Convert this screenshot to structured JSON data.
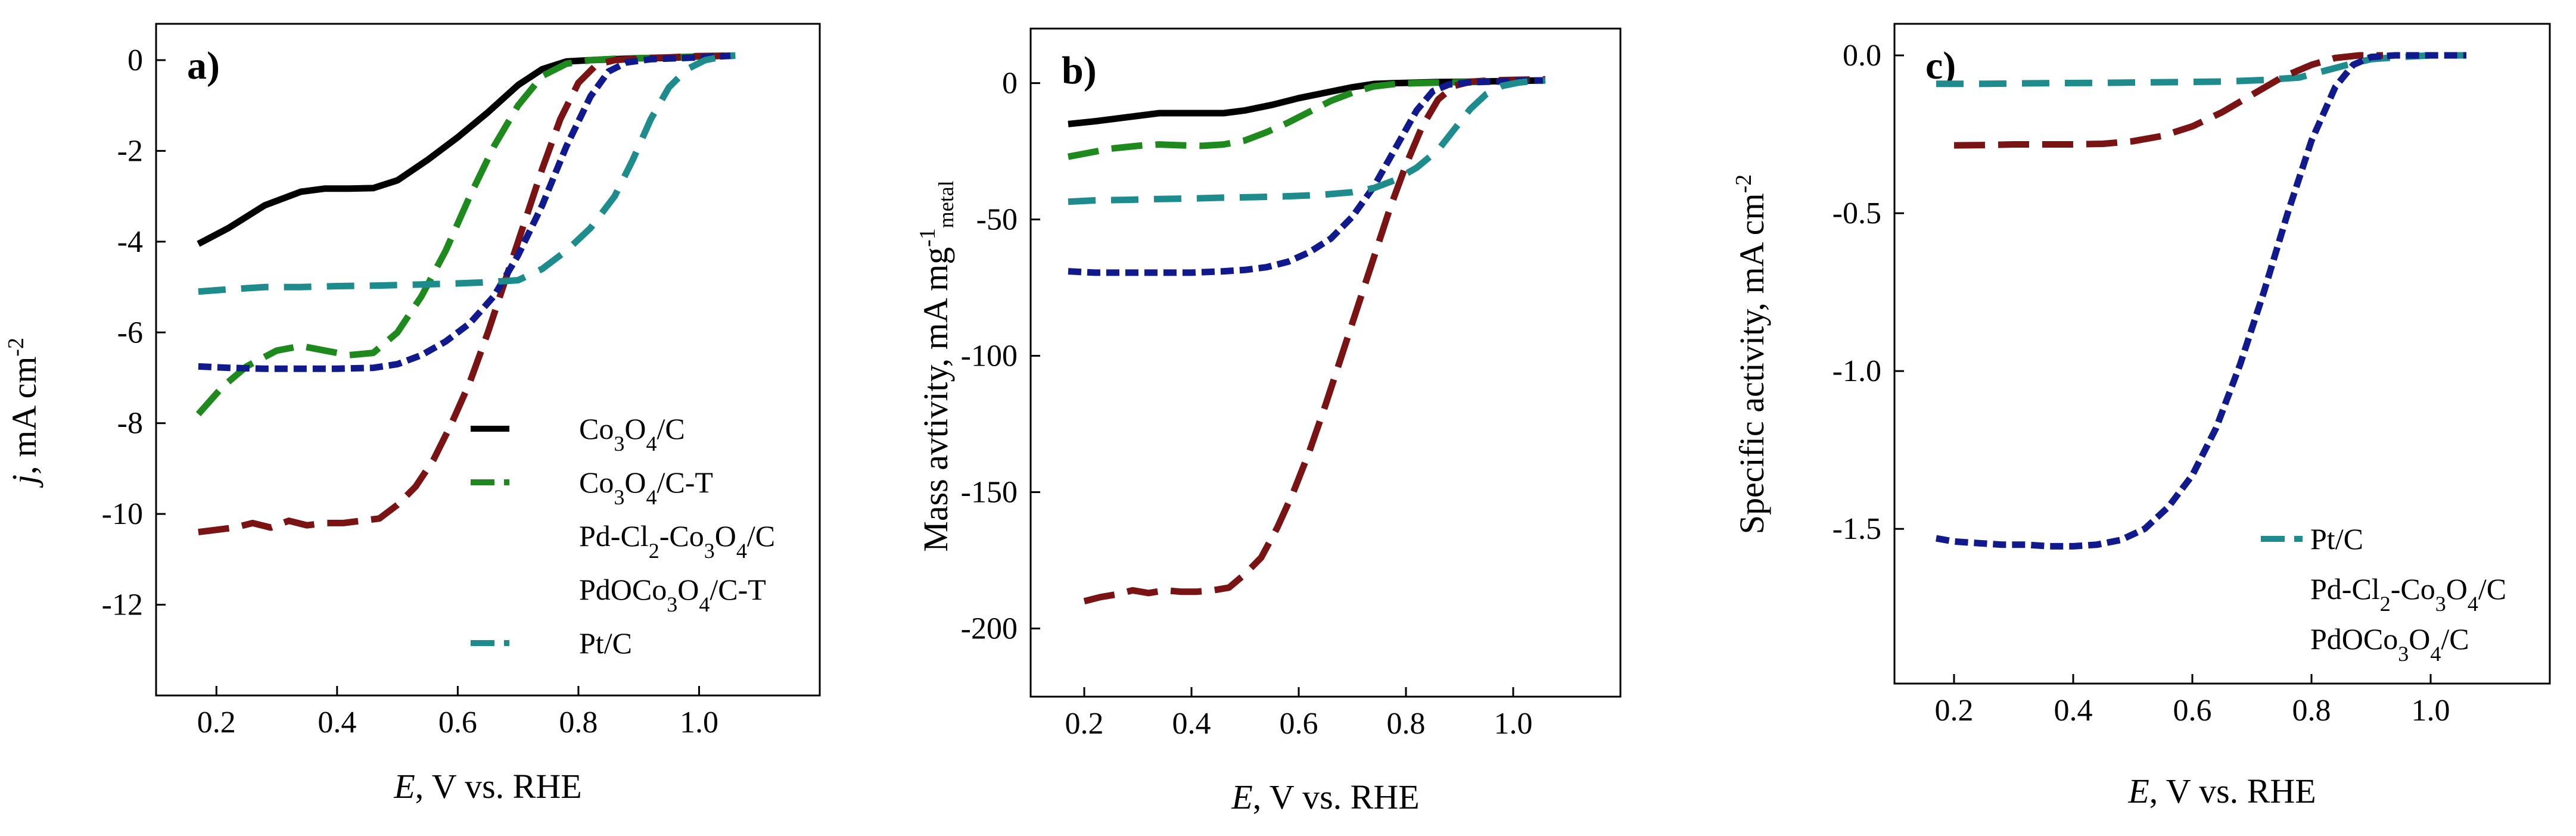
{
  "figure": {
    "colors": {
      "co3o4_c": "#000000",
      "co3o4_c_t": "#1e8a1e",
      "pd_cl2": "#7a1414",
      "pdoco3o4": "#101a8c",
      "pt_c": "#1e8c8c"
    }
  },
  "chart_data": [
    {
      "type": "line",
      "panel": "a)",
      "xlabel": {
        "italic": "E",
        "rest": ", V vs. RHE"
      },
      "ylabel": {
        "italic": "j",
        "rest": ", mA cm",
        "sup": "-2"
      },
      "xlim": [
        0.1,
        1.2
      ],
      "ylim": [
        -14,
        0.8
      ],
      "xticks": [
        0.2,
        0.4,
        0.6,
        0.8,
        1.0
      ],
      "xtick_labels": [
        "0.2",
        "0.4",
        "0.6",
        "0.8",
        "1.0"
      ],
      "yticks": [
        0,
        -2,
        -4,
        -6,
        -8,
        -10,
        -12
      ],
      "ytick_labels": [
        "0",
        "-2",
        "-4",
        "-6",
        "-8",
        "-10",
        "-12"
      ],
      "legend": {
        "position": "bottom-right",
        "entries": [
          {
            "text": "Co3O4/C",
            "color": "#000000",
            "style": "solid",
            "line": true
          },
          {
            "text": "Co3O4/C-T",
            "color": "#1e8a1e",
            "style": "dash",
            "line": true
          },
          {
            "text": "Pd-Cl2-Co3O4/C",
            "color": "#7a1414",
            "style": "dash",
            "line": false
          },
          {
            "text": "PdOCo3O4/C-T",
            "color": "#101a8c",
            "style": "dash",
            "line": false
          },
          {
            "text": "Pt/C",
            "color": "#1e8c8c",
            "style": "dash",
            "line": true
          }
        ]
      },
      "series": [
        {
          "name": "Co3O4/C",
          "color": "#000000",
          "style": "solid",
          "x": [
            0.17,
            0.22,
            0.28,
            0.34,
            0.38,
            0.42,
            0.46,
            0.5,
            0.55,
            0.6,
            0.65,
            0.7,
            0.74,
            0.78,
            0.82,
            0.86,
            0.9,
            0.95,
            1.0,
            1.06
          ],
          "y": [
            -4.05,
            -3.7,
            -3.2,
            -2.9,
            -2.83,
            -2.83,
            -2.82,
            -2.65,
            -2.2,
            -1.7,
            -1.15,
            -0.55,
            -0.2,
            -0.03,
            0.0,
            0.02,
            0.04,
            0.05,
            0.08,
            0.1
          ]
        },
        {
          "name": "Co3O4/C-T",
          "color": "#1e8a1e",
          "style": "dash",
          "x": [
            0.17,
            0.21,
            0.25,
            0.3,
            0.34,
            0.38,
            0.42,
            0.46,
            0.5,
            0.54,
            0.58,
            0.62,
            0.66,
            0.7,
            0.74,
            0.78,
            0.82,
            0.86,
            0.92,
            1.0,
            1.06
          ],
          "y": [
            -7.8,
            -7.2,
            -6.75,
            -6.4,
            -6.3,
            -6.4,
            -6.5,
            -6.45,
            -6.0,
            -5.2,
            -4.2,
            -3.0,
            -1.9,
            -1.0,
            -0.35,
            -0.08,
            0.0,
            0.03,
            0.05,
            0.08,
            0.1
          ]
        },
        {
          "name": "Pd-Cl2-Co3O4/C",
          "color": "#7a1414",
          "style": "dash",
          "x": [
            0.17,
            0.2,
            0.23,
            0.26,
            0.29,
            0.32,
            0.35,
            0.38,
            0.41,
            0.44,
            0.47,
            0.5,
            0.53,
            0.56,
            0.59,
            0.62,
            0.65,
            0.68,
            0.71,
            0.74,
            0.77,
            0.8,
            0.83,
            0.86,
            0.9,
            0.95,
            1.0,
            1.06
          ],
          "y": [
            -10.4,
            -10.35,
            -10.3,
            -10.2,
            -10.3,
            -10.15,
            -10.25,
            -10.2,
            -10.2,
            -10.15,
            -10.1,
            -9.8,
            -9.4,
            -8.8,
            -8.0,
            -7.1,
            -6.0,
            -4.8,
            -3.6,
            -2.4,
            -1.3,
            -0.5,
            -0.1,
            0.0,
            0.04,
            0.06,
            0.09,
            0.1
          ]
        },
        {
          "name": "PdOCo3O4/C-T",
          "color": "#101a8c",
          "style": "dash",
          "x": [
            0.17,
            0.22,
            0.28,
            0.34,
            0.4,
            0.46,
            0.5,
            0.54,
            0.58,
            0.62,
            0.66,
            0.7,
            0.74,
            0.78,
            0.82,
            0.85,
            0.88,
            0.92,
            1.0,
            1.06
          ],
          "y": [
            -6.75,
            -6.78,
            -6.8,
            -6.8,
            -6.8,
            -6.78,
            -6.7,
            -6.5,
            -6.2,
            -5.8,
            -5.2,
            -4.3,
            -3.2,
            -1.9,
            -0.8,
            -0.25,
            -0.05,
            0.02,
            0.06,
            0.1
          ]
        },
        {
          "name": "Pt/C",
          "color": "#1e8c8c",
          "style": "dash",
          "x": [
            0.17,
            0.22,
            0.28,
            0.34,
            0.4,
            0.46,
            0.52,
            0.58,
            0.64,
            0.7,
            0.74,
            0.78,
            0.82,
            0.86,
            0.89,
            0.92,
            0.95,
            0.98,
            1.01,
            1.04,
            1.06
          ],
          "y": [
            -5.1,
            -5.05,
            -5.0,
            -5.0,
            -4.98,
            -4.97,
            -4.95,
            -4.93,
            -4.9,
            -4.85,
            -4.6,
            -4.2,
            -3.7,
            -3.0,
            -2.2,
            -1.3,
            -0.6,
            -0.2,
            0.0,
            0.08,
            0.1
          ]
        }
      ]
    },
    {
      "type": "line",
      "panel": "b)",
      "xlabel": {
        "italic": "E",
        "rest": ", V vs. RHE"
      },
      "ylabel": {
        "text": "Mass avtivity, mA  mg",
        "sup": "-1",
        "sub": "metal"
      },
      "xlim": [
        0.1,
        1.2
      ],
      "ylim": [
        -225,
        20
      ],
      "xticks": [
        0.2,
        0.4,
        0.6,
        0.8,
        1.0
      ],
      "xtick_labels": [
        "0.2",
        "0.4",
        "0.6",
        "0.8",
        "1.0"
      ],
      "yticks": [
        0,
        -50,
        -100,
        -150,
        -200
      ],
      "ytick_labels": [
        "0",
        "-50",
        "-100",
        "-150",
        "-200"
      ],
      "series": [
        {
          "name": "Co3O4/C",
          "color": "#000000",
          "style": "solid",
          "x": [
            0.17,
            0.22,
            0.28,
            0.34,
            0.4,
            0.46,
            0.5,
            0.55,
            0.6,
            0.65,
            0.7,
            0.74,
            0.78,
            0.82,
            0.86,
            0.92,
            1.0,
            1.06
          ],
          "y": [
            -15,
            -14,
            -12.5,
            -11,
            -11,
            -11,
            -10,
            -8,
            -5.5,
            -3.5,
            -1.5,
            -0.3,
            0.0,
            0.2,
            0.4,
            0.5,
            0.8,
            1.0
          ]
        },
        {
          "name": "Co3O4/C-T",
          "color": "#1e8a1e",
          "style": "dash",
          "x": [
            0.17,
            0.21,
            0.25,
            0.3,
            0.34,
            0.38,
            0.42,
            0.46,
            0.5,
            0.54,
            0.58,
            0.62,
            0.66,
            0.7,
            0.74,
            0.78,
            0.82,
            0.86,
            0.92,
            1.0,
            1.06
          ],
          "y": [
            -27,
            -25.5,
            -24,
            -23,
            -22.5,
            -22.8,
            -23,
            -22.5,
            -21,
            -18,
            -14.5,
            -10.5,
            -6.5,
            -3.5,
            -1.2,
            -0.3,
            0.0,
            0.2,
            0.4,
            0.7,
            1.0
          ]
        },
        {
          "name": "Pd-Cl2-Co3O4/C",
          "color": "#7a1414",
          "style": "dash",
          "x": [
            0.2,
            0.23,
            0.26,
            0.29,
            0.32,
            0.35,
            0.38,
            0.41,
            0.44,
            0.47,
            0.5,
            0.53,
            0.56,
            0.59,
            0.62,
            0.65,
            0.68,
            0.71,
            0.74,
            0.77,
            0.8,
            0.83,
            0.86,
            0.89,
            0.92,
            0.96,
            1.0,
            1.06
          ],
          "y": [
            -190,
            -188.5,
            -187.5,
            -186,
            -187,
            -186,
            -186.5,
            -186.5,
            -186,
            -185,
            -180,
            -174,
            -163,
            -150,
            -135,
            -118,
            -100,
            -82,
            -64,
            -46,
            -30,
            -16,
            -6,
            -1,
            0.5,
            1.0,
            1.2,
            1.4
          ]
        },
        {
          "name": "PdOCo3O4/C-T",
          "color": "#101a8c",
          "style": "dash",
          "x": [
            0.17,
            0.22,
            0.28,
            0.34,
            0.4,
            0.46,
            0.5,
            0.54,
            0.58,
            0.62,
            0.66,
            0.7,
            0.74,
            0.78,
            0.82,
            0.85,
            0.88,
            0.92,
            1.0,
            1.06
          ],
          "y": [
            -69,
            -69.5,
            -69.5,
            -69.5,
            -69.5,
            -69,
            -68.5,
            -67.5,
            -65.5,
            -62,
            -57,
            -49,
            -38,
            -24,
            -10,
            -3,
            -0.5,
            0.3,
            0.8,
            1.0
          ]
        },
        {
          "name": "Pt/C",
          "color": "#1e8c8c",
          "style": "dash",
          "x": [
            0.17,
            0.22,
            0.28,
            0.34,
            0.4,
            0.46,
            0.52,
            0.58,
            0.64,
            0.7,
            0.74,
            0.78,
            0.82,
            0.86,
            0.89,
            0.92,
            0.95,
            0.98,
            1.01,
            1.04,
            1.06
          ],
          "y": [
            -43.5,
            -43,
            -42.8,
            -42.5,
            -42.3,
            -42,
            -41.8,
            -41.5,
            -41,
            -40,
            -38.5,
            -35.5,
            -31,
            -24.5,
            -17,
            -9.5,
            -4,
            -1,
            0.2,
            0.8,
            1.0
          ]
        }
      ]
    },
    {
      "type": "line",
      "panel": "c)",
      "xlabel": {
        "italic": "E",
        "rest": ", V vs. RHE"
      },
      "ylabel": {
        "text": "Specific activity, mA cm",
        "sup": "-2"
      },
      "xlim": [
        0.1,
        1.2
      ],
      "ylim": [
        -1.99,
        0.1
      ],
      "xticks": [
        0.2,
        0.4,
        0.6,
        0.8,
        1.0
      ],
      "xtick_labels": [
        "0.2",
        "0.4",
        "0.6",
        "0.8",
        "1.0"
      ],
      "yticks": [
        0.0,
        -0.5,
        -1.0,
        -1.5
      ],
      "ytick_labels": [
        "0.0",
        "-0.5",
        "-1.0",
        "-1.5"
      ],
      "legend": {
        "position": "bottom-right",
        "entries": [
          {
            "text": "Pt/C",
            "color": "#1e8c8c",
            "style": "dash",
            "line": true
          },
          {
            "text": "Pd-Cl2-Co3O4/C",
            "color": "#7a1414",
            "style": "dash",
            "line": false
          },
          {
            "text": "PdOCo3O4/C",
            "color": "#101a8c",
            "style": "dash",
            "line": false
          }
        ]
      },
      "series": [
        {
          "name": "Pt/C",
          "color": "#1e8c8c",
          "style": "dash",
          "x": [
            0.17,
            0.25,
            0.35,
            0.45,
            0.55,
            0.65,
            0.72,
            0.78,
            0.82,
            0.86,
            0.9,
            0.95,
            1.0,
            1.06
          ],
          "y": [
            -0.09,
            -0.09,
            -0.088,
            -0.087,
            -0.085,
            -0.083,
            -0.078,
            -0.07,
            -0.05,
            -0.03,
            -0.012,
            -0.005,
            0.0,
            0.0
          ]
        },
        {
          "name": "Pd-Cl2-Co3O4/C",
          "color": "#7a1414",
          "style": "dash",
          "x": [
            0.2,
            0.25,
            0.3,
            0.35,
            0.4,
            0.45,
            0.5,
            0.55,
            0.6,
            0.65,
            0.7,
            0.75,
            0.8,
            0.84,
            0.88,
            0.92
          ],
          "y": [
            -0.285,
            -0.284,
            -0.282,
            -0.282,
            -0.282,
            -0.28,
            -0.272,
            -0.255,
            -0.225,
            -0.18,
            -0.125,
            -0.07,
            -0.03,
            -0.008,
            0.0,
            0.0
          ]
        },
        {
          "name": "PdOCo3O4/C",
          "color": "#101a8c",
          "style": "dash",
          "x": [
            0.17,
            0.2,
            0.24,
            0.28,
            0.32,
            0.36,
            0.4,
            0.44,
            0.48,
            0.52,
            0.56,
            0.6,
            0.64,
            0.68,
            0.72,
            0.76,
            0.8,
            0.84,
            0.87,
            0.9,
            0.94,
            1.0,
            1.06
          ],
          "y": [
            -1.53,
            -1.54,
            -1.545,
            -1.55,
            -1.55,
            -1.555,
            -1.555,
            -1.55,
            -1.535,
            -1.5,
            -1.43,
            -1.33,
            -1.18,
            -0.98,
            -0.75,
            -0.5,
            -0.27,
            -0.1,
            -0.03,
            -0.005,
            0.0,
            0.0,
            0.0
          ]
        }
      ]
    }
  ]
}
